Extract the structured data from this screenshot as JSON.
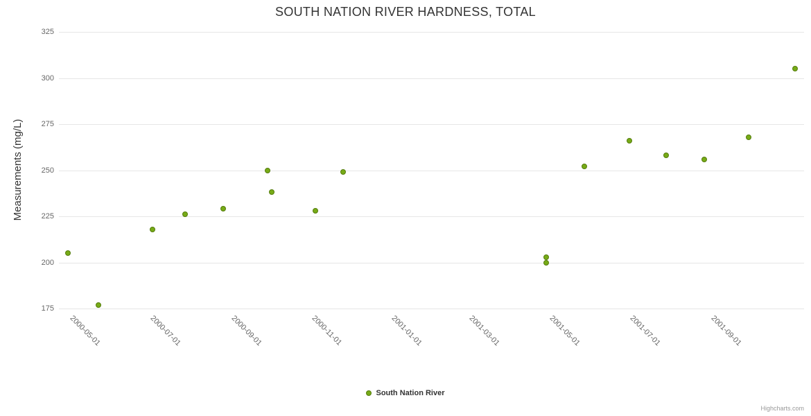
{
  "credits": {
    "label": "Highcharts.com"
  },
  "chart_data": {
    "type": "scatter",
    "title": "SOUTH NATION RIVER HARDNESS, TOTAL",
    "xlabel": "",
    "ylabel": "Measurements (mg/L)",
    "ylim": [
      175,
      325
    ],
    "y_ticks": [
      175,
      200,
      225,
      250,
      275,
      300,
      325
    ],
    "x_ticks": [
      "2000-05-01",
      "2000-07-01",
      "2000-09-01",
      "2000-11-01",
      "2001-01-01",
      "2001-03-01",
      "2001-05-01",
      "2001-07-01",
      "2001-09-01"
    ],
    "x_range": [
      "2000-04-01",
      "2001-10-20"
    ],
    "grid": "horizontal",
    "legend_position": "bottom-center",
    "series": [
      {
        "name": "South Nation River",
        "points": [
          {
            "date": "2000-04-08",
            "value": 205
          },
          {
            "date": "2000-05-01",
            "value": 177
          },
          {
            "date": "2000-06-11",
            "value": 218
          },
          {
            "date": "2000-07-06",
            "value": 226
          },
          {
            "date": "2000-08-04",
            "value": 229
          },
          {
            "date": "2000-09-07",
            "value": 250
          },
          {
            "date": "2000-09-10",
            "value": 238
          },
          {
            "date": "2000-10-13",
            "value": 228
          },
          {
            "date": "2000-11-03",
            "value": 249
          },
          {
            "date": "2001-04-07",
            "value": 203
          },
          {
            "date": "2001-04-07",
            "value": 200
          },
          {
            "date": "2001-05-06",
            "value": 252
          },
          {
            "date": "2001-06-09",
            "value": 266
          },
          {
            "date": "2001-07-07",
            "value": 258
          },
          {
            "date": "2001-08-05",
            "value": 256
          },
          {
            "date": "2001-09-08",
            "value": 268
          },
          {
            "date": "2001-10-13",
            "value": 305
          }
        ]
      }
    ],
    "colors": {
      "background": "#ffffff",
      "marker_fill": "#77ab17",
      "marker_border": "#547c0c",
      "grid": "#e6e6e6",
      "axis_line": "#d8d8d8",
      "tick_text": "#666666",
      "title_text": "#333333",
      "axis_title_text": "#333333",
      "legend_text": "#333333",
      "credits_text": "#999999"
    }
  }
}
